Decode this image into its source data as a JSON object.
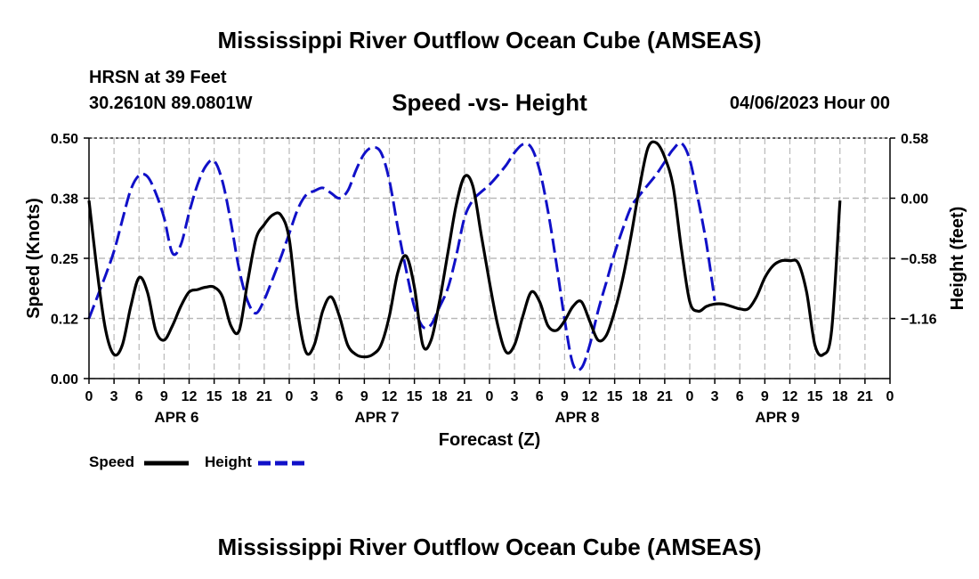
{
  "header": {
    "main_title": "Mississippi River Outflow Ocean Cube (AMSEAS)",
    "station": "HRSN at 39 Feet",
    "coords": "30.2610N  89.0801W",
    "subtitle": "Speed -vs- Height",
    "datetime": "04/06/2023 Hour 00"
  },
  "footer": {
    "title": "Mississippi River Outflow Ocean Cube (AMSEAS)"
  },
  "colors": {
    "speed": "#000000",
    "height": "#1010c8",
    "grid": "#b8b8b8"
  },
  "chart_data": {
    "type": "line",
    "xlabel": "Forecast (Z)",
    "ylabel_left": "Speed (Knots)",
    "ylabel_right": "Height (feet)",
    "x_hours_range": [
      0,
      96
    ],
    "x_tick_step_hours": 3,
    "x_tick_labels": [
      "0",
      "3",
      "6",
      "9",
      "12",
      "15",
      "18",
      "21",
      "0",
      "3",
      "6",
      "9",
      "12",
      "15",
      "18",
      "21",
      "0",
      "3",
      "6",
      "9",
      "12",
      "15",
      "18",
      "21",
      "0",
      "3",
      "6",
      "9",
      "12",
      "15",
      "18",
      "21",
      "0"
    ],
    "day_labels": [
      {
        "label": "APR 6",
        "hour": 10.5
      },
      {
        "label": "APR 7",
        "hour": 34.5
      },
      {
        "label": "APR 8",
        "hour": 58.5
      },
      {
        "label": "APR 9",
        "hour": 82.5
      }
    ],
    "y_left_range": [
      0,
      0.5
    ],
    "y_left_ticks": [
      0,
      0.125,
      0.25,
      0.375,
      0.5
    ],
    "y_left_tick_labels": [
      "0.00",
      "0.12",
      "0.25",
      "0.38",
      "0.50"
    ],
    "y_right_range": [
      -1.74,
      0.58
    ],
    "y_right_ticks": [
      -1.16,
      -0.58,
      0.0,
      0.58
    ],
    "y_right_tick_labels": [
      "−1.16",
      "−0.58",
      "0.00",
      "0.58"
    ],
    "series": [
      {
        "name": "Speed",
        "axis": "left",
        "style": "solid",
        "points": [
          [
            0,
            0.37
          ],
          [
            1,
            0.22
          ],
          [
            2,
            0.1
          ],
          [
            3,
            0.05
          ],
          [
            4,
            0.07
          ],
          [
            5,
            0.15
          ],
          [
            6,
            0.21
          ],
          [
            7,
            0.18
          ],
          [
            8,
            0.1
          ],
          [
            9,
            0.08
          ],
          [
            10,
            0.11
          ],
          [
            11,
            0.15
          ],
          [
            12,
            0.18
          ],
          [
            13,
            0.185
          ],
          [
            14,
            0.19
          ],
          [
            15,
            0.19
          ],
          [
            16,
            0.17
          ],
          [
            17,
            0.11
          ],
          [
            18,
            0.1
          ],
          [
            19,
            0.2
          ],
          [
            20,
            0.29
          ],
          [
            21,
            0.32
          ],
          [
            22,
            0.34
          ],
          [
            23,
            0.34
          ],
          [
            24,
            0.29
          ],
          [
            25,
            0.14
          ],
          [
            26,
            0.055
          ],
          [
            27,
            0.07
          ],
          [
            28,
            0.14
          ],
          [
            29,
            0.17
          ],
          [
            30,
            0.13
          ],
          [
            31,
            0.07
          ],
          [
            32,
            0.05
          ],
          [
            33,
            0.045
          ],
          [
            34,
            0.05
          ],
          [
            35,
            0.07
          ],
          [
            36,
            0.13
          ],
          [
            37,
            0.22
          ],
          [
            38,
            0.255
          ],
          [
            39,
            0.19
          ],
          [
            40,
            0.07
          ],
          [
            41,
            0.08
          ],
          [
            42,
            0.16
          ],
          [
            43,
            0.26
          ],
          [
            44,
            0.36
          ],
          [
            45,
            0.42
          ],
          [
            46,
            0.4
          ],
          [
            47,
            0.3
          ],
          [
            48,
            0.2
          ],
          [
            49,
            0.11
          ],
          [
            50,
            0.055
          ],
          [
            51,
            0.07
          ],
          [
            52,
            0.13
          ],
          [
            53,
            0.18
          ],
          [
            54,
            0.16
          ],
          [
            55,
            0.11
          ],
          [
            56,
            0.1
          ],
          [
            57,
            0.12
          ],
          [
            58,
            0.15
          ],
          [
            59,
            0.16
          ],
          [
            60,
            0.12
          ],
          [
            61,
            0.08
          ],
          [
            62,
            0.09
          ],
          [
            63,
            0.14
          ],
          [
            64,
            0.21
          ],
          [
            65,
            0.3
          ],
          [
            66,
            0.4
          ],
          [
            67,
            0.48
          ],
          [
            68,
            0.49
          ],
          [
            69,
            0.46
          ],
          [
            70,
            0.4
          ],
          [
            71,
            0.27
          ],
          [
            72,
            0.16
          ],
          [
            73,
            0.14
          ],
          [
            74,
            0.15
          ],
          [
            75,
            0.155
          ],
          [
            76,
            0.155
          ],
          [
            77,
            0.15
          ],
          [
            78,
            0.145
          ],
          [
            79,
            0.145
          ],
          [
            80,
            0.17
          ],
          [
            81,
            0.21
          ],
          [
            82,
            0.235
          ],
          [
            83,
            0.245
          ],
          [
            84,
            0.245
          ],
          [
            85,
            0.24
          ],
          [
            86,
            0.18
          ],
          [
            87,
            0.07
          ],
          [
            88,
            0.05
          ],
          [
            89,
            0.1
          ],
          [
            90,
            0.37
          ]
        ]
      },
      {
        "name": "Height",
        "axis": "right",
        "style": "dashed",
        "points": [
          [
            0,
            -1.16
          ],
          [
            1,
            -0.95
          ],
          [
            2,
            -0.74
          ],
          [
            3,
            -0.51
          ],
          [
            4,
            -0.21
          ],
          [
            5,
            0.08
          ],
          [
            6,
            0.22
          ],
          [
            7,
            0.21
          ],
          [
            8,
            0.05
          ],
          [
            9,
            -0.19
          ],
          [
            10,
            -0.53
          ],
          [
            11,
            -0.45
          ],
          [
            12,
            -0.14
          ],
          [
            13,
            0.13
          ],
          [
            14,
            0.31
          ],
          [
            15,
            0.36
          ],
          [
            16,
            0.16
          ],
          [
            17,
            -0.23
          ],
          [
            18,
            -0.69
          ],
          [
            19,
            -0.99
          ],
          [
            20,
            -1.11
          ],
          [
            21,
            -0.98
          ],
          [
            22,
            -0.78
          ],
          [
            23,
            -0.57
          ],
          [
            24,
            -0.34
          ],
          [
            25,
            -0.11
          ],
          [
            26,
            0.03
          ],
          [
            27,
            0.07
          ],
          [
            28,
            0.1
          ],
          [
            29,
            0.05
          ],
          [
            30,
            0.0
          ],
          [
            31,
            0.07
          ],
          [
            32,
            0.27
          ],
          [
            33,
            0.43
          ],
          [
            34,
            0.49
          ],
          [
            35,
            0.44
          ],
          [
            36,
            0.17
          ],
          [
            37,
            -0.28
          ],
          [
            38,
            -0.69
          ],
          [
            39,
            -1.05
          ],
          [
            40,
            -1.24
          ],
          [
            41,
            -1.22
          ],
          [
            42,
            -1.05
          ],
          [
            43,
            -0.87
          ],
          [
            44,
            -0.56
          ],
          [
            45,
            -0.19
          ],
          [
            46,
            -0.02
          ],
          [
            47,
            0.06
          ],
          [
            48,
            0.13
          ],
          [
            49,
            0.22
          ],
          [
            50,
            0.32
          ],
          [
            51,
            0.44
          ],
          [
            52,
            0.52
          ],
          [
            53,
            0.49
          ],
          [
            54,
            0.27
          ],
          [
            55,
            -0.12
          ],
          [
            56,
            -0.62
          ],
          [
            57,
            -1.17
          ],
          [
            58,
            -1.6
          ],
          [
            59,
            -1.64
          ],
          [
            60,
            -1.42
          ],
          [
            61,
            -1.09
          ],
          [
            62,
            -0.81
          ],
          [
            63,
            -0.53
          ],
          [
            64,
            -0.29
          ],
          [
            65,
            -0.08
          ],
          [
            66,
            0.03
          ],
          [
            67,
            0.13
          ],
          [
            68,
            0.23
          ],
          [
            69,
            0.35
          ],
          [
            70,
            0.47
          ],
          [
            71,
            0.53
          ],
          [
            72,
            0.37
          ],
          [
            73,
            -0.01
          ],
          [
            74,
            -0.44
          ],
          [
            75,
            -0.99
          ]
        ]
      }
    ]
  },
  "legend": {
    "speed_label": "Speed",
    "height_label": "Height"
  }
}
